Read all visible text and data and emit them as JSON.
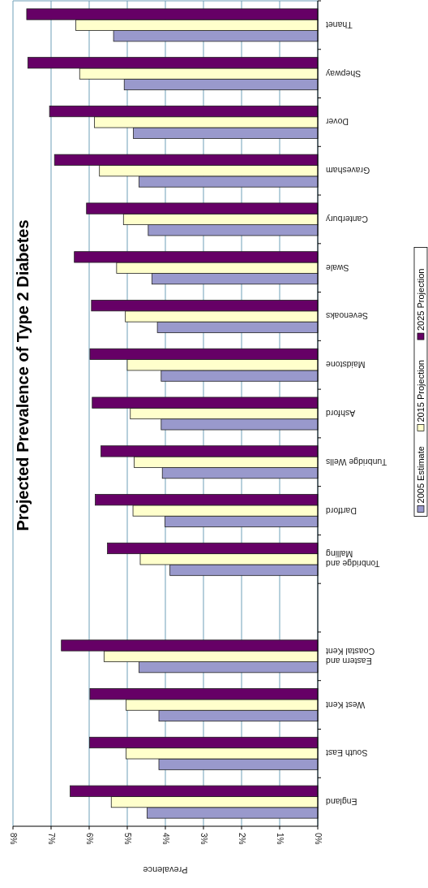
{
  "chart_data": {
    "type": "bar",
    "orientation": "horizontal",
    "title": "Projected Prevalence of Type 2 Diabetes",
    "xlabel": "Prevalence",
    "categories": [
      "Thanet",
      "Shepway",
      "Dover",
      "Gravesham",
      "Canterbury",
      "Swale",
      "Sevenoaks",
      "Maidstone",
      "Ashford",
      "Tunbridge Wells",
      "Dartford",
      "Tonbridge and Malling",
      null,
      "Eastern and Coastal Kent",
      "West Kent",
      "South East",
      "England"
    ],
    "series": [
      {
        "name": "2005 Estimate",
        "color": "#9999cc",
        "values": [
          5.36,
          5.08,
          4.84,
          4.69,
          4.45,
          4.35,
          4.21,
          4.11,
          4.11,
          4.08,
          4.01,
          3.88,
          null,
          4.69,
          4.17,
          4.17,
          4.48
        ]
      },
      {
        "name": "2015 Projection",
        "color": "#ffffcc",
        "values": [
          6.35,
          6.25,
          5.86,
          5.73,
          5.1,
          5.28,
          5.05,
          5.0,
          4.92,
          4.82,
          4.85,
          4.66,
          null,
          5.61,
          5.03,
          5.03,
          5.42
        ]
      },
      {
        "name": "2025 Projection",
        "color": "#660066",
        "values": [
          7.64,
          7.61,
          7.04,
          6.91,
          6.07,
          6.39,
          5.94,
          5.98,
          5.92,
          5.69,
          5.84,
          5.52,
          null,
          6.73,
          5.98,
          5.99,
          6.5
        ]
      }
    ],
    "xlim": [
      8,
      0
    ],
    "xticks": [
      {
        "value": 8,
        "label": "8%"
      },
      {
        "value": 7,
        "label": "7%"
      },
      {
        "value": 6,
        "label": "6%"
      },
      {
        "value": 5,
        "label": "5%"
      },
      {
        "value": 4,
        "label": "4%"
      },
      {
        "value": 3,
        "label": "3%"
      },
      {
        "value": 2,
        "label": "2%"
      },
      {
        "value": 1,
        "label": "1%"
      },
      {
        "value": 0,
        "label": "0%"
      }
    ],
    "grid": "x",
    "legend": "right"
  }
}
